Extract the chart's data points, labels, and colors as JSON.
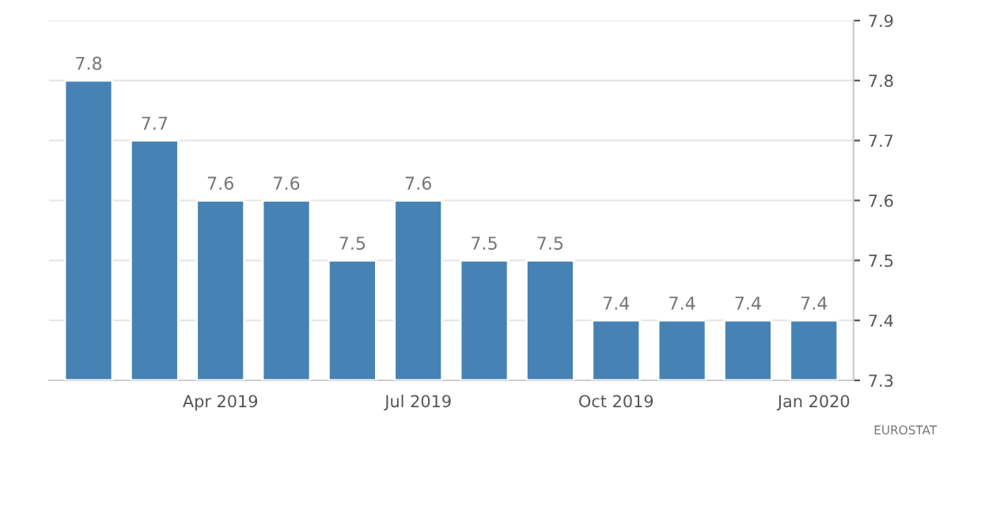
{
  "chart_data": {
    "type": "bar",
    "categories": [
      null,
      null,
      "Apr 2019",
      null,
      null,
      "Jul 2019",
      null,
      null,
      "Oct 2019",
      null,
      null,
      "Jan 2020"
    ],
    "values": [
      7.8,
      7.7,
      7.6,
      7.6,
      7.5,
      7.6,
      7.5,
      7.5,
      7.4,
      7.4,
      7.4,
      7.4
    ],
    "color": "#4682b4",
    "ylim": [
      7.3,
      7.9
    ],
    "yticks": [
      7.3,
      7.4,
      7.5,
      7.6,
      7.7,
      7.8,
      7.9
    ],
    "grid": "y",
    "data_labels": true,
    "annotations": [
      "EUROSTAT"
    ]
  }
}
